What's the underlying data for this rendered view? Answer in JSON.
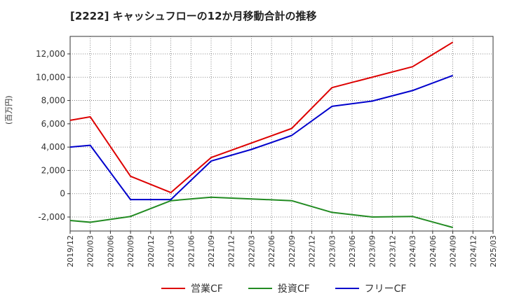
{
  "chart_data": {
    "type": "line",
    "title": "[2222]  キャッシュフローの12か月移動合計の推移",
    "ylabel": "(百万円)",
    "xlabel": "",
    "ylim": [
      -3200,
      13500
    ],
    "yticks": [
      -2000,
      0,
      2000,
      4000,
      6000,
      8000,
      10000,
      12000
    ],
    "ytick_labels": [
      "-2,000",
      "0",
      "2,000",
      "4,000",
      "6,000",
      "8,000",
      "10,000",
      "12,000"
    ],
    "categories": [
      "2019/12",
      "2020/03",
      "2020/06",
      "2020/09",
      "2020/12",
      "2021/03",
      "2021/06",
      "2021/09",
      "2021/12",
      "2022/03",
      "2022/06",
      "2022/09",
      "2022/12",
      "2023/03",
      "2023/06",
      "2023/09",
      "2023/12",
      "2024/03",
      "2024/06",
      "2024/09",
      "2024/12",
      "2025/03"
    ],
    "grid": true,
    "legend": "bottom",
    "series": [
      {
        "name": "営業CF",
        "color": "#dd0000",
        "values": [
          6300,
          6600,
          null,
          1500,
          null,
          100,
          null,
          3100,
          null,
          null,
          null,
          5600,
          null,
          9100,
          null,
          null,
          null,
          10900,
          null,
          13000,
          null,
          null
        ]
      },
      {
        "name": "投資CF",
        "color": "#228B22",
        "values": [
          -2300,
          -2450,
          null,
          -1950,
          null,
          -600,
          null,
          -300,
          null,
          null,
          null,
          -600,
          null,
          -1600,
          null,
          -2000,
          null,
          -1950,
          null,
          -2900,
          null,
          null
        ]
      },
      {
        "name": "フリーCF",
        "color": "#0000cc",
        "values": [
          4000,
          4150,
          null,
          -500,
          null,
          -500,
          null,
          2800,
          null,
          3800,
          null,
          5000,
          null,
          7500,
          null,
          7950,
          null,
          8850,
          null,
          10150,
          null,
          null
        ]
      }
    ]
  }
}
